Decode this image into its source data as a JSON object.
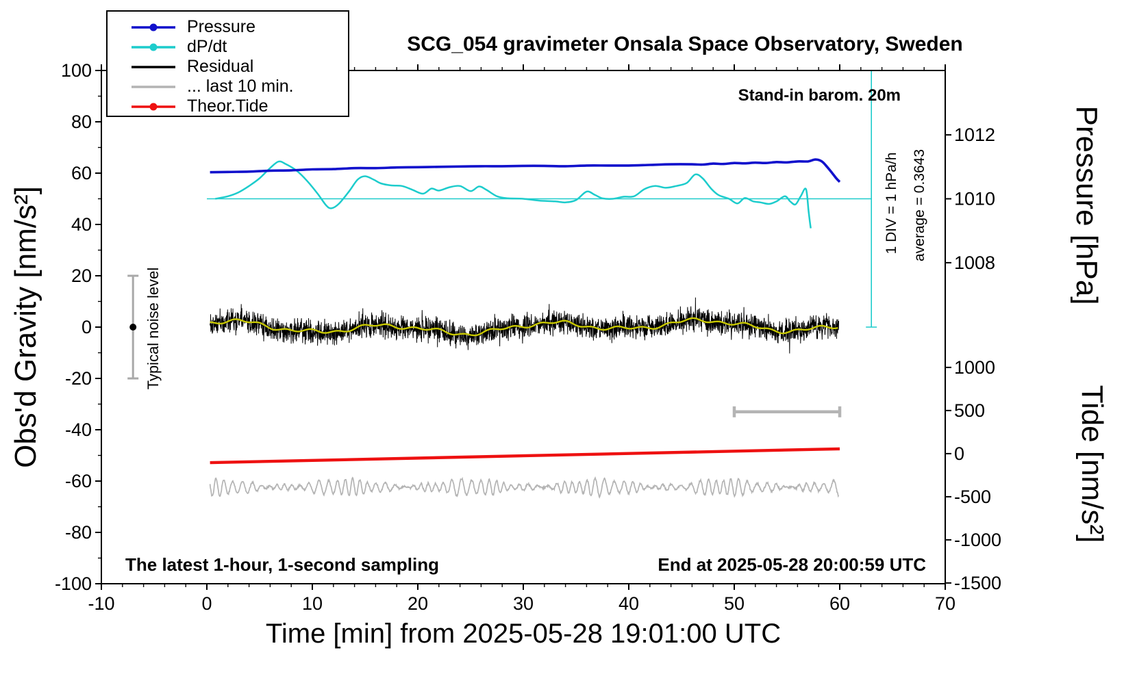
{
  "annotations": {
    "stand_in_barom": "Stand-in barom. 20m",
    "div_scale": "1 DIV = 1 hPa/h",
    "average": "average = 0.3643",
    "noise_label": "Typical noise level",
    "sampling_note": "The latest 1-hour, 1-second sampling",
    "end_note": "End at 2025-05-28 20:00:59 UTC"
  },
  "legend": {
    "items": [
      {
        "label": "Pressure",
        "color": "#1111cc",
        "dot": true
      },
      {
        "label": "dP/dt",
        "color": "#1dcccc",
        "dot": true
      },
      {
        "label": "Residual",
        "color": "#000000",
        "dot": false
      },
      {
        "label": "... last 10 min.",
        "color": "#b4b4b4",
        "dot": false
      },
      {
        "label": "Theor.Tide",
        "color": "#ee1111",
        "dot": true
      }
    ]
  },
  "chart_data": {
    "type": "line",
    "title": "SCG_054 gravimeter Onsala Space Observatory, Sweden",
    "xlabel": "Time [min] from 2025-05-28 19:01:00 UTC",
    "x_range": [
      -10,
      70
    ],
    "x_ticks": [
      -10,
      0,
      10,
      20,
      30,
      40,
      50,
      60,
      70
    ],
    "y_left": {
      "label": "Obs'd Gravity [nm/s²]",
      "range": [
        -100,
        100
      ],
      "ticks": [
        -100,
        -80,
        -60,
        -40,
        -20,
        0,
        20,
        40,
        60,
        80,
        100
      ]
    },
    "y_pressure": {
      "label": "Pressure [hPa]",
      "ticks": [
        1012,
        1010,
        1008
      ],
      "hPa_ref": 1010,
      "g_ref": 50,
      "g_per_hPa": 12.45
    },
    "y_tide": {
      "label": "Tide [nm/s²]",
      "ticks": [
        1000,
        500,
        0,
        -500,
        -1000,
        -1500
      ],
      "g_at_zero": -49.3,
      "g_per_unit": 0.0336
    },
    "series": {
      "pressure": {
        "name": "Pressure",
        "color": "#1111cc",
        "x": [
          0.3,
          2,
          4,
          6,
          8,
          10,
          12,
          14,
          16,
          18,
          20,
          22,
          24,
          26,
          28,
          30,
          32,
          34,
          36,
          38,
          40,
          42,
          44,
          46,
          47,
          48,
          49,
          50,
          51,
          52,
          53,
          54,
          55,
          56,
          57,
          57.7,
          58.3,
          58.8,
          59.3,
          59.7,
          60
        ],
        "hPa": [
          1010.83,
          1010.84,
          1010.85,
          1010.88,
          1010.89,
          1010.92,
          1010.93,
          1010.96,
          1010.96,
          1010.98,
          1010.99,
          1011.0,
          1011.01,
          1011.02,
          1011.02,
          1011.03,
          1011.03,
          1011.02,
          1011.04,
          1011.04,
          1011.04,
          1011.06,
          1011.08,
          1011.08,
          1011.07,
          1011.1,
          1011.09,
          1011.12,
          1011.11,
          1011.13,
          1011.12,
          1011.15,
          1011.14,
          1011.17,
          1011.17,
          1011.23,
          1011.17,
          1011.0,
          1010.8,
          1010.63,
          1010.53
        ]
      },
      "dpdt": {
        "name": "dP/dt",
        "color": "#1dcccc",
        "zero_g": 50,
        "x": [
          0.8,
          2,
          3,
          4,
          5,
          6,
          6.8,
          7.5,
          8.5,
          9.5,
          10.5,
          11.3,
          11.8,
          12.5,
          13.5,
          14.3,
          15,
          15.8,
          16.5,
          17.5,
          18.5,
          19.5,
          20.5,
          21.3,
          22,
          23,
          24,
          25,
          25.8,
          26.5,
          27.5,
          28.5,
          30,
          31.5,
          33,
          34,
          35,
          36,
          36.8,
          37.5,
          38.5,
          39.5,
          40.5,
          41.5,
          42.5,
          43.5,
          44.5,
          45.5,
          46.3,
          47,
          47.8,
          48.5,
          49.5,
          50.3,
          51,
          51.8,
          52.5,
          53.3,
          54,
          54.8,
          55.3,
          55.8,
          56.3,
          56.8,
          57.05,
          57.25
        ],
        "g": [
          50,
          51,
          52.5,
          55,
          58,
          62,
          64.5,
          63.5,
          61,
          57,
          52,
          47.5,
          46.3,
          48,
          53,
          57.5,
          58.8,
          57.5,
          56,
          55.2,
          55,
          53.5,
          52,
          54,
          53.2,
          54.5,
          55,
          53,
          54.8,
          53.5,
          51,
          50.2,
          50,
          49.3,
          49,
          48.6,
          49.5,
          52.8,
          51.5,
          50.2,
          50,
          50.8,
          51,
          53.8,
          55,
          54.3,
          55,
          56.2,
          59.5,
          58,
          54,
          51.5,
          50,
          48.2,
          50.3,
          49,
          48.6,
          48,
          49,
          51,
          49,
          47.8,
          51,
          53.8,
          45,
          38.5
        ]
      },
      "residual": {
        "name": "Residual",
        "color": "#000000",
        "x_start": 0.3,
        "x_end": 59.9,
        "n": 3000,
        "amplitude": 7,
        "seed": 1337,
        "mean_g": 0
      },
      "residual_smooth": {
        "name": "Residual smoothed",
        "color": "#c8c800"
      },
      "last10": {
        "name": "... last 10 min.",
        "color": "#b4b4b4",
        "g_base": -62.4,
        "x_start": 0.3,
        "x_end": 59.9,
        "period": 0.8,
        "seed": 77
      },
      "tide": {
        "name": "Theor.Tide",
        "color": "#ee1111",
        "x": [
          0.3,
          60
        ],
        "tide": [
          -105,
          55
        ]
      }
    },
    "markers": {
      "zero_line": {
        "g": 50,
        "x_start": 0,
        "x_end": 63,
        "color": "#1dcccc"
      },
      "div_indicator": {
        "x": 63,
        "g_low": 0,
        "g_high": 100,
        "color": "#1dcccc"
      },
      "noise_bar": {
        "x": -7,
        "g_low": -20,
        "g_high": 20,
        "color": "#a9a9a9",
        "dot_color": "#000000"
      },
      "span_bar": {
        "x_start": 50,
        "x_end": 60,
        "g": -33,
        "color": "#b4b4b4"
      }
    }
  }
}
